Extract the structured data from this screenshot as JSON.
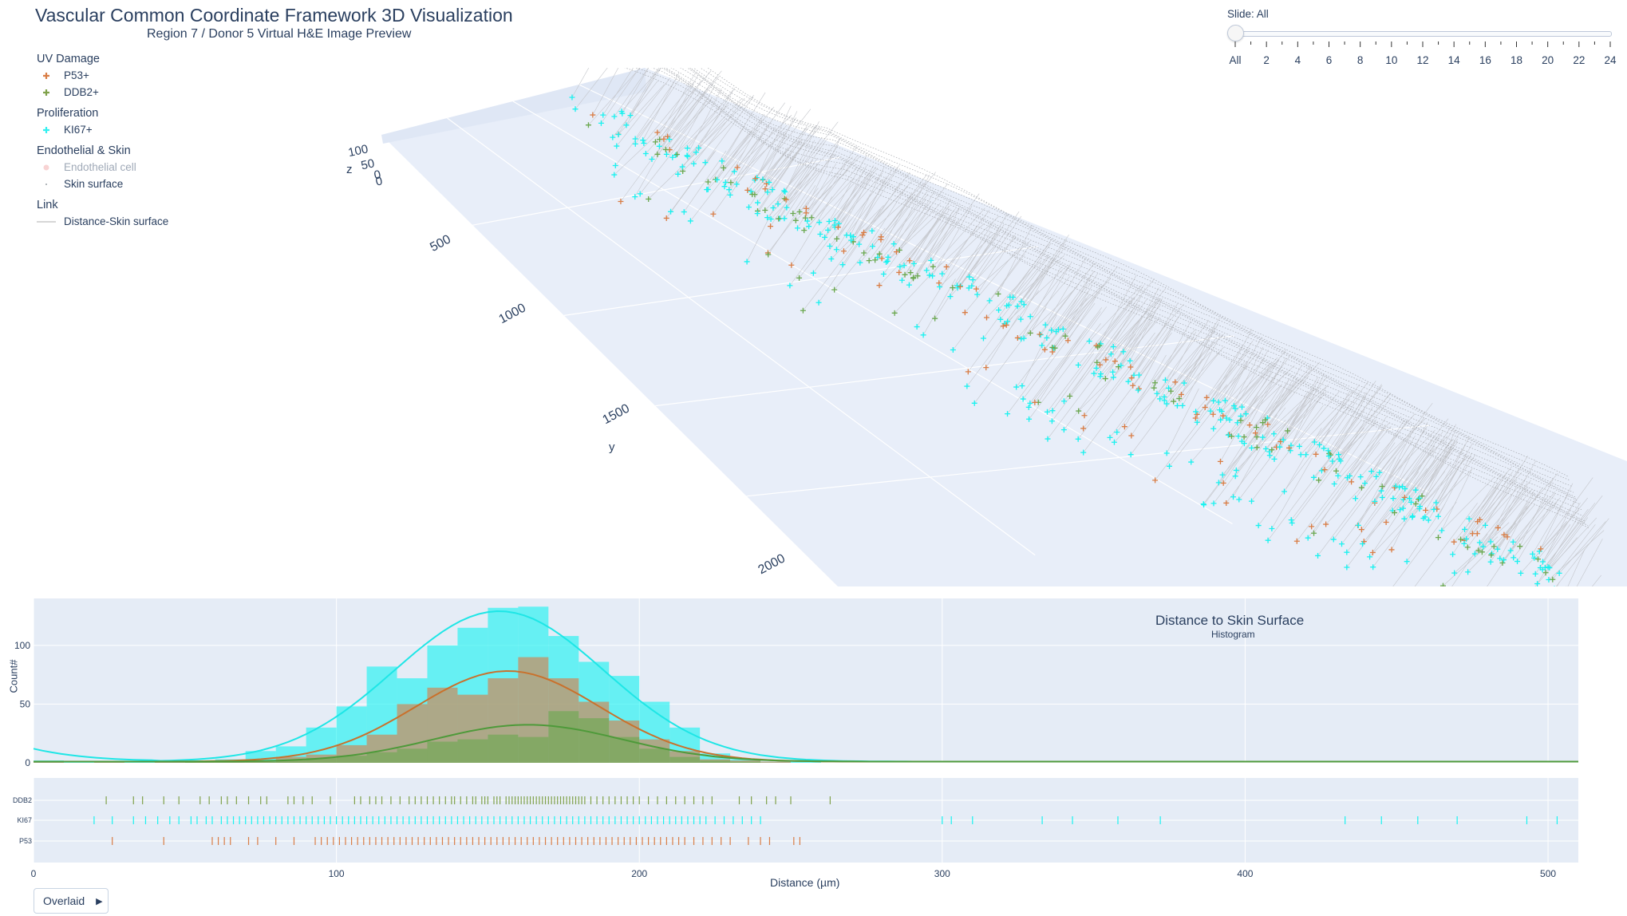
{
  "title": "Vascular Common Coordinate Framework 3D Visualization",
  "subtitle": "Region 7 / Donor 5  Virtual H&E Image Preview",
  "legend": {
    "groups": [
      {
        "title": "UV Damage",
        "items": [
          {
            "label": "P53+",
            "symbol": "cross",
            "color": "#d97d45",
            "faded": false
          },
          {
            "label": "DDB2+",
            "symbol": "cross",
            "color": "#7fa14a",
            "faded": false
          }
        ]
      },
      {
        "title": "Proliferation",
        "items": [
          {
            "label": "KI67+",
            "symbol": "cross",
            "color": "#33f0f0",
            "faded": false
          }
        ]
      },
      {
        "title": "Endothelial & Skin",
        "items": [
          {
            "label": "Endothelial cell",
            "symbol": "dot",
            "color": "#f0a0a0",
            "faded": true
          },
          {
            "label": "Skin surface",
            "symbol": "smalldot",
            "color": "#9aa0a6",
            "faded": false
          }
        ]
      },
      {
        "title": "Link",
        "items": [
          {
            "label": "Distance-Skin surface",
            "symbol": "line",
            "color": "#c8c8c8",
            "faded": false
          }
        ]
      }
    ]
  },
  "slider": {
    "label": "Slide: All",
    "value": "All",
    "ticks": [
      "All",
      "2",
      "4",
      "6",
      "8",
      "10",
      "12",
      "14",
      "16",
      "18",
      "20",
      "22",
      "24"
    ]
  },
  "scene": {
    "z_label": "z",
    "y_label": "y",
    "z_ticks": [
      "100",
      "50",
      "0",
      "0"
    ],
    "y_ticks": [
      "500",
      "1000",
      "1500",
      "2000"
    ]
  },
  "overlay_button": {
    "label": "Overlaid",
    "icon": "play-icon"
  },
  "colors": {
    "p53": "#d97d45",
    "ddb2": "#6aa84f",
    "ki67": "#19f2f0",
    "plot_bg": "#e5ecf6"
  },
  "chart_data": [
    {
      "type": "bar",
      "title": "Distance to Skin Surface",
      "subtitle": "Histogram",
      "xlabel": "Distance (µm)",
      "ylabel": "Count#",
      "barmode": "overlay",
      "x_range": [
        0,
        510
      ],
      "y_range": [
        0,
        140
      ],
      "x_ticks": [
        0,
        100,
        200,
        300,
        400,
        500
      ],
      "y_ticks": [
        0,
        50,
        100
      ],
      "bin_width": 10,
      "bin_starts": [
        0,
        10,
        20,
        30,
        40,
        50,
        60,
        70,
        80,
        90,
        100,
        110,
        120,
        130,
        140,
        150,
        160,
        170,
        180,
        190,
        200,
        210,
        220,
        230,
        240,
        250
      ],
      "series": [
        {
          "name": "KI67",
          "color": "#19f2f0",
          "values": [
            2,
            1,
            1,
            1,
            1,
            2,
            3,
            10,
            14,
            30,
            48,
            82,
            72,
            100,
            115,
            132,
            133,
            108,
            86,
            74,
            52,
            30,
            8,
            3,
            1,
            1
          ]
        },
        {
          "name": "P53",
          "color": "#d97d45",
          "values": [
            1,
            0,
            1,
            0,
            1,
            1,
            1,
            1,
            5,
            7,
            15,
            24,
            50,
            64,
            58,
            72,
            90,
            72,
            52,
            36,
            20,
            10,
            3,
            2,
            1,
            0
          ]
        },
        {
          "name": "DDB2",
          "color": "#6aa84f",
          "values": [
            0,
            0,
            0,
            0,
            0,
            1,
            1,
            1,
            2,
            4,
            6,
            9,
            12,
            18,
            20,
            24,
            22,
            44,
            38,
            22,
            12,
            5,
            2,
            1,
            0,
            0
          ]
        }
      ]
    },
    {
      "type": "scatter",
      "title": "",
      "categories": [
        "DDB2",
        "KI67",
        "P53"
      ],
      "x_range": [
        0,
        510
      ],
      "series": [
        {
          "name": "DDB2",
          "color": "#7fa14a",
          "x": [
            24,
            33,
            36,
            43,
            48,
            55,
            58,
            62,
            64,
            67,
            71,
            75,
            77,
            84,
            86,
            89,
            92,
            98,
            106,
            108,
            111,
            113,
            115,
            118,
            121,
            124,
            126,
            128,
            130,
            132,
            134,
            136,
            138,
            139,
            141,
            143,
            145,
            146,
            148,
            149,
            150,
            152,
            153,
            154,
            156,
            157,
            158,
            159,
            160,
            161,
            162,
            163,
            164,
            165,
            166,
            167,
            168,
            169,
            170,
            171,
            172,
            173,
            174,
            175,
            176,
            177,
            178,
            179,
            180,
            181,
            182,
            184,
            186,
            188,
            190,
            192,
            194,
            196,
            198,
            200,
            203,
            206,
            209,
            212,
            215,
            218,
            221,
            224,
            233,
            237,
            242,
            245,
            250,
            263
          ]
        },
        {
          "name": "KI67",
          "color": "#19f2f0",
          "x": [
            20,
            26,
            33,
            37,
            41,
            45,
            48,
            52,
            54,
            57,
            59,
            62,
            64,
            66,
            68,
            70,
            72,
            74,
            76,
            78,
            80,
            82,
            84,
            86,
            88,
            90,
            92,
            94,
            96,
            98,
            100,
            102,
            104,
            106,
            108,
            110,
            112,
            114,
            116,
            118,
            120,
            122,
            124,
            126,
            128,
            130,
            132,
            134,
            136,
            138,
            140,
            142,
            144,
            146,
            148,
            150,
            152,
            154,
            156,
            158,
            160,
            162,
            164,
            166,
            168,
            170,
            172,
            174,
            176,
            178,
            180,
            182,
            184,
            186,
            188,
            190,
            192,
            194,
            196,
            198,
            200,
            202,
            204,
            206,
            208,
            210,
            212,
            214,
            216,
            218,
            220,
            222,
            225,
            228,
            231,
            234,
            237,
            240,
            300,
            303,
            310,
            333,
            343,
            358,
            372,
            433,
            445,
            457,
            470,
            493,
            503
          ]
        },
        {
          "name": "P53",
          "color": "#d97d45",
          "x": [
            26,
            43,
            59,
            61,
            63,
            65,
            71,
            74,
            80,
            86,
            93,
            95,
            97,
            99,
            101,
            103,
            105,
            107,
            109,
            111,
            113,
            115,
            117,
            119,
            121,
            123,
            125,
            127,
            129,
            131,
            133,
            135,
            137,
            139,
            141,
            143,
            145,
            147,
            149,
            151,
            153,
            155,
            157,
            159,
            161,
            163,
            165,
            167,
            169,
            171,
            173,
            175,
            177,
            179,
            181,
            183,
            185,
            187,
            189,
            191,
            193,
            195,
            197,
            199,
            201,
            203,
            205,
            207,
            209,
            211,
            213,
            215,
            218,
            221,
            224,
            227,
            230,
            236,
            240,
            243,
            251,
            253
          ]
        }
      ]
    }
  ]
}
